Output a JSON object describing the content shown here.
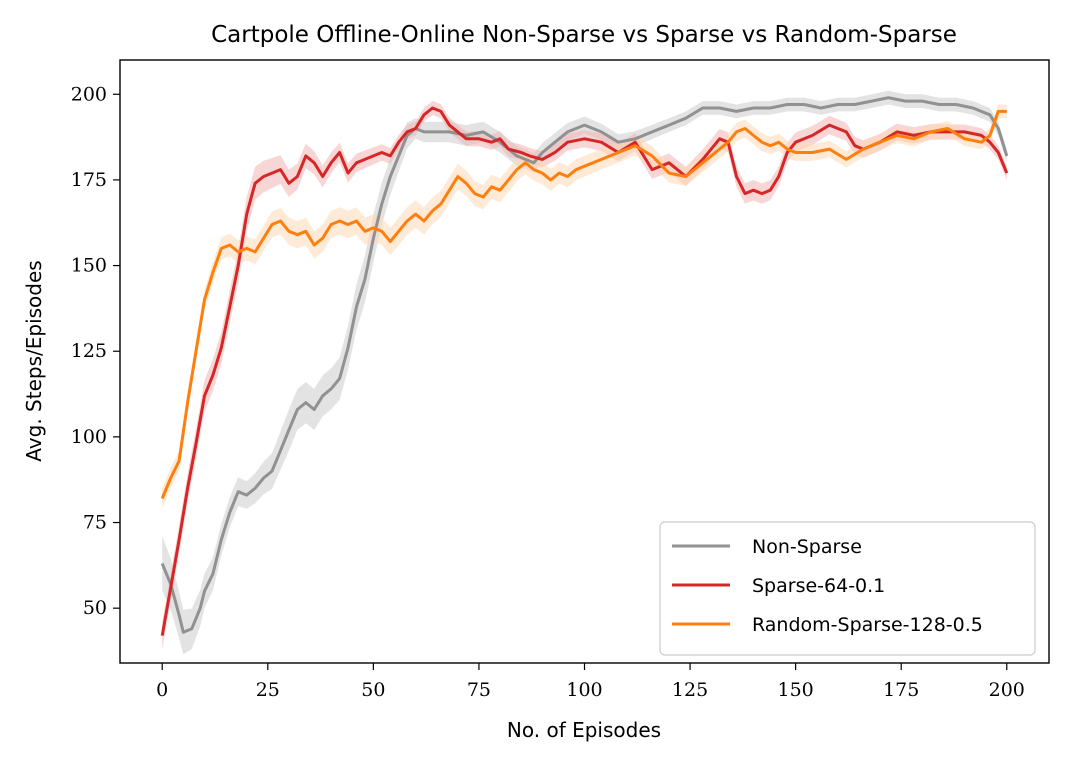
{
  "chart_data": {
    "type": "line",
    "title": "Cartpole Offline-Online Non-Sparse vs Sparse vs Random-Sparse",
    "xlabel": "No. of Episodes",
    "ylabel": "Avg. Steps/Episodes",
    "xlim": [
      -10,
      210
    ],
    "ylim": [
      34,
      210
    ],
    "xticks": [
      0,
      25,
      50,
      75,
      100,
      125,
      150,
      175,
      200
    ],
    "yticks": [
      50,
      75,
      100,
      125,
      150,
      175,
      200
    ],
    "grid": false,
    "legend_position": "bottom-right",
    "series": [
      {
        "name": "Non-Sparse",
        "color": "#919191",
        "band_color": "#cccccc",
        "points": [
          [
            0,
            63
          ],
          [
            2,
            57
          ],
          [
            4,
            48
          ],
          [
            5,
            43
          ],
          [
            7,
            44
          ],
          [
            9,
            50
          ],
          [
            10,
            55
          ],
          [
            12,
            60
          ],
          [
            14,
            70
          ],
          [
            16,
            78
          ],
          [
            18,
            84
          ],
          [
            20,
            83
          ],
          [
            22,
            85
          ],
          [
            24,
            88
          ],
          [
            26,
            90
          ],
          [
            28,
            96
          ],
          [
            30,
            102
          ],
          [
            32,
            108
          ],
          [
            34,
            110
          ],
          [
            36,
            108
          ],
          [
            38,
            112
          ],
          [
            40,
            114
          ],
          [
            42,
            117
          ],
          [
            44,
            126
          ],
          [
            46,
            138
          ],
          [
            48,
            146
          ],
          [
            50,
            158
          ],
          [
            52,
            168
          ],
          [
            54,
            176
          ],
          [
            56,
            182
          ],
          [
            58,
            188
          ],
          [
            60,
            190
          ],
          [
            62,
            189
          ],
          [
            65,
            189
          ],
          [
            68,
            189
          ],
          [
            72,
            188
          ],
          [
            76,
            189
          ],
          [
            80,
            186
          ],
          [
            84,
            182
          ],
          [
            88,
            180
          ],
          [
            90,
            183
          ],
          [
            93,
            186
          ],
          [
            96,
            189
          ],
          [
            100,
            191
          ],
          [
            104,
            189
          ],
          [
            108,
            186
          ],
          [
            112,
            187
          ],
          [
            116,
            189
          ],
          [
            120,
            191
          ],
          [
            124,
            193
          ],
          [
            128,
            196
          ],
          [
            132,
            196
          ],
          [
            136,
            195
          ],
          [
            140,
            196
          ],
          [
            144,
            196
          ],
          [
            148,
            197
          ],
          [
            152,
            197
          ],
          [
            156,
            196
          ],
          [
            160,
            197
          ],
          [
            164,
            197
          ],
          [
            168,
            198
          ],
          [
            172,
            199
          ],
          [
            176,
            198
          ],
          [
            180,
            198
          ],
          [
            184,
            197
          ],
          [
            188,
            197
          ],
          [
            192,
            196
          ],
          [
            196,
            194
          ],
          [
            198,
            190
          ],
          [
            200,
            182
          ]
        ],
        "band_halfwidth": [
          [
            0,
            8
          ],
          [
            10,
            5
          ],
          [
            20,
            4
          ],
          [
            30,
            6
          ],
          [
            40,
            6
          ],
          [
            50,
            7
          ],
          [
            60,
            3
          ],
          [
            80,
            3
          ],
          [
            120,
            2
          ],
          [
            200,
            2
          ]
        ]
      },
      {
        "name": "Sparse-64-0.1",
        "color": "#d62728",
        "band_color": "#f3b4b4",
        "points": [
          [
            0,
            42
          ],
          [
            2,
            56
          ],
          [
            4,
            70
          ],
          [
            6,
            85
          ],
          [
            8,
            98
          ],
          [
            10,
            112
          ],
          [
            12,
            118
          ],
          [
            14,
            126
          ],
          [
            16,
            138
          ],
          [
            18,
            150
          ],
          [
            20,
            165
          ],
          [
            22,
            174
          ],
          [
            24,
            176
          ],
          [
            26,
            177
          ],
          [
            28,
            178
          ],
          [
            30,
            174
          ],
          [
            32,
            176
          ],
          [
            34,
            182
          ],
          [
            36,
            180
          ],
          [
            38,
            176
          ],
          [
            40,
            180
          ],
          [
            42,
            183
          ],
          [
            44,
            177
          ],
          [
            46,
            180
          ],
          [
            48,
            181
          ],
          [
            50,
            182
          ],
          [
            52,
            183
          ],
          [
            54,
            182
          ],
          [
            56,
            186
          ],
          [
            58,
            189
          ],
          [
            60,
            190
          ],
          [
            62,
            194
          ],
          [
            64,
            196
          ],
          [
            66,
            195
          ],
          [
            68,
            191
          ],
          [
            70,
            189
          ],
          [
            72,
            187
          ],
          [
            75,
            187
          ],
          [
            78,
            186
          ],
          [
            80,
            187
          ],
          [
            82,
            184
          ],
          [
            85,
            183
          ],
          [
            87,
            182
          ],
          [
            90,
            181
          ],
          [
            93,
            183
          ],
          [
            96,
            186
          ],
          [
            100,
            187
          ],
          [
            104,
            186
          ],
          [
            108,
            183
          ],
          [
            112,
            186
          ],
          [
            116,
            178
          ],
          [
            120,
            180
          ],
          [
            124,
            176
          ],
          [
            128,
            181
          ],
          [
            132,
            187
          ],
          [
            134,
            186
          ],
          [
            136,
            176
          ],
          [
            138,
            171
          ],
          [
            140,
            172
          ],
          [
            142,
            171
          ],
          [
            144,
            172
          ],
          [
            146,
            176
          ],
          [
            148,
            183
          ],
          [
            150,
            186
          ],
          [
            154,
            188
          ],
          [
            158,
            191
          ],
          [
            162,
            189
          ],
          [
            164,
            185
          ],
          [
            166,
            184
          ],
          [
            170,
            186
          ],
          [
            174,
            189
          ],
          [
            178,
            188
          ],
          [
            182,
            189
          ],
          [
            186,
            189
          ],
          [
            190,
            189
          ],
          [
            194,
            188
          ],
          [
            196,
            186
          ],
          [
            198,
            183
          ],
          [
            200,
            177
          ]
        ],
        "band_halfwidth": [
          [
            0,
            4
          ],
          [
            20,
            5
          ],
          [
            40,
            3
          ],
          [
            60,
            2
          ],
          [
            140,
            3
          ],
          [
            200,
            2
          ]
        ]
      },
      {
        "name": "Random-Sparse-128-0.5",
        "color": "#ff7f0e",
        "band_color": "#fdd9b7",
        "points": [
          [
            0,
            82
          ],
          [
            2,
            88
          ],
          [
            4,
            93
          ],
          [
            6,
            110
          ],
          [
            8,
            125
          ],
          [
            10,
            140
          ],
          [
            12,
            148
          ],
          [
            14,
            155
          ],
          [
            16,
            156
          ],
          [
            18,
            154
          ],
          [
            20,
            155
          ],
          [
            22,
            154
          ],
          [
            24,
            158
          ],
          [
            26,
            162
          ],
          [
            28,
            163
          ],
          [
            30,
            160
          ],
          [
            32,
            159
          ],
          [
            34,
            160
          ],
          [
            36,
            156
          ],
          [
            38,
            158
          ],
          [
            40,
            162
          ],
          [
            42,
            163
          ],
          [
            44,
            162
          ],
          [
            46,
            163
          ],
          [
            48,
            160
          ],
          [
            50,
            161
          ],
          [
            52,
            160
          ],
          [
            54,
            157
          ],
          [
            56,
            160
          ],
          [
            58,
            163
          ],
          [
            60,
            165
          ],
          [
            62,
            163
          ],
          [
            64,
            166
          ],
          [
            66,
            168
          ],
          [
            68,
            172
          ],
          [
            70,
            176
          ],
          [
            72,
            174
          ],
          [
            74,
            171
          ],
          [
            76,
            170
          ],
          [
            78,
            173
          ],
          [
            80,
            172
          ],
          [
            82,
            175
          ],
          [
            84,
            178
          ],
          [
            86,
            180
          ],
          [
            88,
            178
          ],
          [
            90,
            177
          ],
          [
            92,
            175
          ],
          [
            94,
            177
          ],
          [
            96,
            176
          ],
          [
            98,
            178
          ],
          [
            100,
            179
          ],
          [
            104,
            181
          ],
          [
            108,
            183
          ],
          [
            112,
            185
          ],
          [
            116,
            182
          ],
          [
            120,
            177
          ],
          [
            124,
            176
          ],
          [
            128,
            180
          ],
          [
            132,
            184
          ],
          [
            134,
            186
          ],
          [
            136,
            189
          ],
          [
            138,
            190
          ],
          [
            140,
            188
          ],
          [
            142,
            186
          ],
          [
            144,
            185
          ],
          [
            146,
            186
          ],
          [
            148,
            184
          ],
          [
            150,
            183
          ],
          [
            154,
            183
          ],
          [
            158,
            184
          ],
          [
            162,
            181
          ],
          [
            166,
            184
          ],
          [
            170,
            186
          ],
          [
            174,
            188
          ],
          [
            178,
            187
          ],
          [
            182,
            189
          ],
          [
            186,
            190
          ],
          [
            190,
            187
          ],
          [
            194,
            186
          ],
          [
            196,
            188
          ],
          [
            198,
            195
          ],
          [
            200,
            195
          ]
        ],
        "band_halfwidth": [
          [
            0,
            3
          ],
          [
            10,
            3
          ],
          [
            30,
            4
          ],
          [
            60,
            4
          ],
          [
            100,
            3
          ],
          [
            200,
            2
          ]
        ]
      }
    ]
  }
}
